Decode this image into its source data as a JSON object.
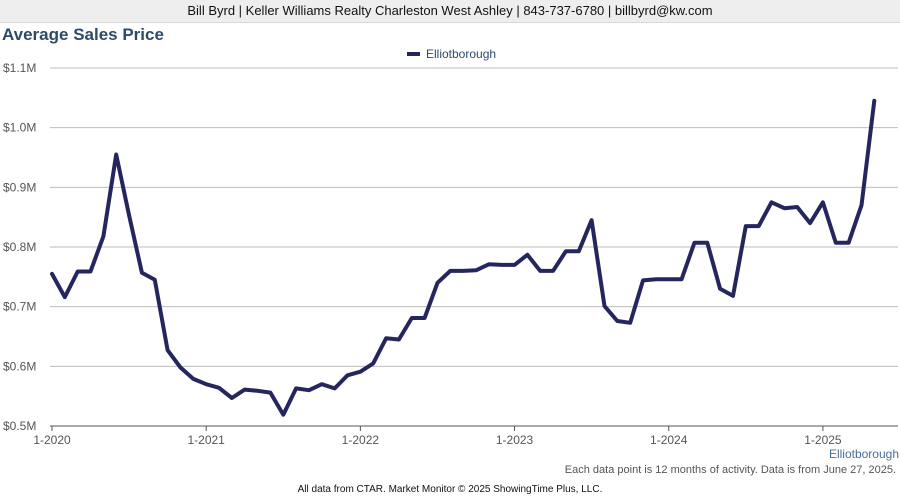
{
  "header": {
    "text": "Bill Byrd | Keller Williams Realty Charleston West Ashley | 843-737-6780 | billbyrd@kw.com"
  },
  "footer": {
    "note": "Each data point is 12 months of activity. Data is from June 27, 2025.",
    "source": "All data from CTAR. Market Monitor © 2025 ShowingTime Plus, LLC."
  },
  "colors": {
    "line": "#26265e",
    "title": "#2e4a6b",
    "grid": "#bdbdbd",
    "label": "#555555",
    "series_label": "#4a6f96"
  },
  "chart_data": {
    "type": "line",
    "title": "Average Sales Price",
    "xlabel": "",
    "ylabel": "",
    "legend": {
      "placement": "top-center",
      "entries": [
        "Elliotborough"
      ]
    },
    "end_label": "Elliotborough",
    "ylim": [
      500000,
      1100000
    ],
    "y_ticks": [
      500000,
      600000,
      700000,
      800000,
      900000,
      1000000,
      1100000
    ],
    "y_tick_labels": [
      "$0.5M",
      "$0.6M",
      "$0.7M",
      "$0.8M",
      "$0.9M",
      "$1.0M",
      "$1.1M"
    ],
    "x_ticks": [
      "2020-01",
      "2021-01",
      "2022-01",
      "2023-01",
      "2024-01",
      "2025-01"
    ],
    "x_tick_labels": [
      "1-2020",
      "1-2021",
      "1-2022",
      "1-2023",
      "1-2024",
      "1-2025"
    ],
    "grid": true,
    "series": [
      {
        "name": "Elliotborough",
        "x": [
          "2020-01",
          "2020-02",
          "2020-03",
          "2020-04",
          "2020-05",
          "2020-06",
          "2020-07",
          "2020-08",
          "2020-09",
          "2020-10",
          "2020-11",
          "2020-12",
          "2021-01",
          "2021-02",
          "2021-03",
          "2021-04",
          "2021-05",
          "2021-06",
          "2021-07",
          "2021-08",
          "2021-09",
          "2021-10",
          "2021-11",
          "2021-12",
          "2022-01",
          "2022-02",
          "2022-03",
          "2022-04",
          "2022-05",
          "2022-06",
          "2022-07",
          "2022-08",
          "2022-09",
          "2022-10",
          "2022-11",
          "2022-12",
          "2023-01",
          "2023-02",
          "2023-03",
          "2023-04",
          "2023-05",
          "2023-06",
          "2023-07",
          "2023-08",
          "2023-09",
          "2023-10",
          "2023-11",
          "2023-12",
          "2024-01",
          "2024-02",
          "2024-03",
          "2024-04",
          "2024-05",
          "2024-06",
          "2024-07",
          "2024-08",
          "2024-09",
          "2024-10",
          "2024-11",
          "2024-12",
          "2025-01",
          "2025-02",
          "2025-03",
          "2025-04",
          "2025-05"
        ],
        "values": [
          755000,
          716000,
          759000,
          759000,
          818000,
          955000,
          853000,
          757000,
          745000,
          627000,
          598000,
          579000,
          570000,
          564000,
          547000,
          561000,
          559000,
          556000,
          519000,
          563000,
          560000,
          570000,
          563000,
          585000,
          591000,
          605000,
          647000,
          645000,
          681000,
          681000,
          740000,
          760000,
          760000,
          761000,
          771000,
          770000,
          770000,
          787000,
          760000,
          760000,
          793000,
          793000,
          845000,
          701000,
          676000,
          673000,
          744000,
          746000,
          746000,
          746000,
          807000,
          807000,
          730000,
          718000,
          835000,
          835000,
          875000,
          865000,
          867000,
          840000,
          875000,
          807000,
          807000,
          870000,
          1045000
        ]
      }
    ]
  }
}
